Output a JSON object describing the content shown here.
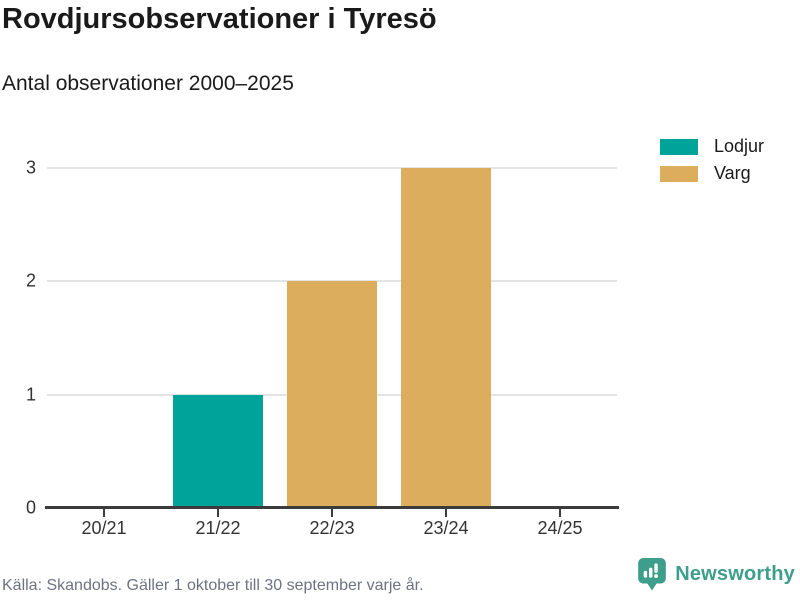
{
  "header": {
    "title": "Rovdjursobservationer i Tyresö",
    "subtitle": "Antal observationer 2000–2025"
  },
  "legend": [
    {
      "label": "Lodjur",
      "color": "#00a39a"
    },
    {
      "label": "Varg",
      "color": "#dbad5c"
    }
  ],
  "chart_data": {
    "type": "bar",
    "title": "Rovdjursobservationer i Tyresö",
    "subtitle": "Antal observationer 2000–2025",
    "categories": [
      "20/21",
      "21/22",
      "22/23",
      "23/24",
      "24/25"
    ],
    "series": [
      {
        "name": "Lodjur",
        "color": "#00a39a",
        "values": [
          0,
          1,
          0,
          0,
          0
        ]
      },
      {
        "name": "Varg",
        "color": "#dbad5c",
        "values": [
          0,
          0,
          2,
          3,
          0
        ]
      }
    ],
    "xlabel": "",
    "ylabel": "",
    "yticks": [
      0,
      1,
      2,
      3
    ],
    "ylim": [
      0,
      3
    ],
    "grid": true,
    "legend_position": "top-right"
  },
  "colors": {
    "grid": "#e4e4e4",
    "axis": "#3b3b3b",
    "axis_text": "#333333",
    "text": "#1a1a1a",
    "muted_text": "#6e7280",
    "brand": "#3d9e8c"
  },
  "footer": {
    "source": "Källa: Skandobs. Gäller 1 oktober till 30 september varje år.",
    "brand": "Newsworthy"
  }
}
